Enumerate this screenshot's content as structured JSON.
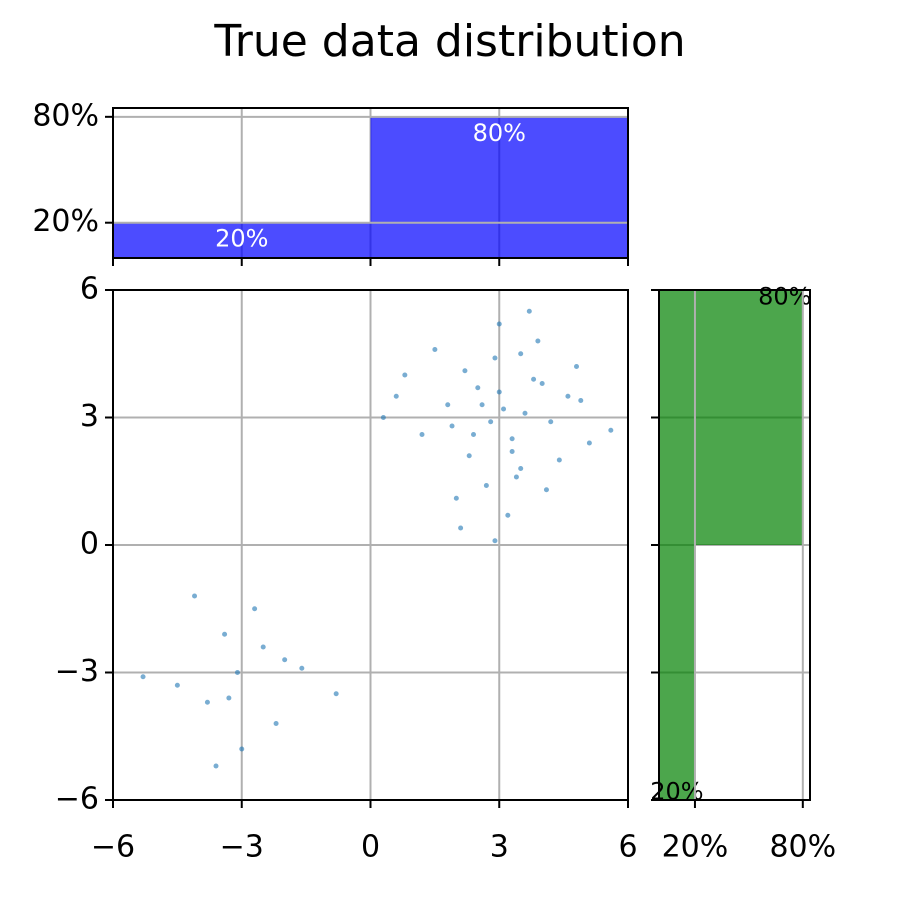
{
  "chart_data": [
    {
      "type": "scatter",
      "title": "True data distribution",
      "color": "#1f77b4",
      "grid": true,
      "xlim": [
        -6,
        6
      ],
      "ylim": [
        -6,
        6
      ],
      "xticks": [
        {
          "value": -6,
          "label": "−6"
        },
        {
          "value": -3,
          "label": "−3"
        },
        0,
        3,
        6
      ],
      "yticks": [
        {
          "value": -6,
          "label": "−6"
        },
        {
          "value": -3,
          "label": "−3"
        },
        0,
        3,
        6
      ],
      "x": [
        3.1,
        2.4,
        3.8,
        2.9,
        3.5,
        1.8,
        4.2,
        2.2,
        3.3,
        2.7,
        4.6,
        1.2,
        3.0,
        3.9,
        2.5,
        5.1,
        0.8,
        3.6,
        2.0,
        4.4,
        2.8,
        3.2,
        1.5,
        4.0,
        2.6,
        3.7,
        5.6,
        0.3,
        3.4,
        2.3,
        4.8,
        1.9,
        3.0,
        2.1,
        4.1,
        3.5,
        2.9,
        0.6,
        4.9,
        3.3,
        -3.1,
        -2.5,
        -3.8,
        -2.2,
        -3.4,
        -4.5,
        -1.6,
        -3.0,
        -2.7,
        -4.1,
        -5.3,
        -0.8,
        -3.6,
        -2.0,
        -3.3
      ],
      "y": [
        3.2,
        2.6,
        3.9,
        4.4,
        1.8,
        3.3,
        2.9,
        4.1,
        2.2,
        1.4,
        3.5,
        2.6,
        5.2,
        4.8,
        3.7,
        2.4,
        4.0,
        3.1,
        1.1,
        2.0,
        2.9,
        0.7,
        4.6,
        3.8,
        3.3,
        5.5,
        2.7,
        3.0,
        1.6,
        2.1,
        4.2,
        2.8,
        3.6,
        0.4,
        1.3,
        4.5,
        0.1,
        3.5,
        3.4,
        2.5,
        -3.0,
        -2.4,
        -3.7,
        -4.2,
        -2.1,
        -3.3,
        -2.9,
        -4.8,
        -1.5,
        -1.2,
        -3.1,
        -3.5,
        -5.2,
        -2.7,
        -3.6
      ]
    },
    {
      "type": "histogram",
      "orientation": "vertical",
      "color": "#0000ff",
      "grid": true,
      "bins": [
        -6,
        0,
        6
      ],
      "values": [
        20,
        80
      ],
      "value_labels": [
        "20%",
        "80%"
      ],
      "ylim": [
        0,
        85
      ],
      "yticks": [
        {
          "value": 20,
          "label": "20%"
        },
        {
          "value": 80,
          "label": "80%"
        }
      ]
    },
    {
      "type": "histogram",
      "orientation": "horizontal",
      "color": "#008000",
      "grid": true,
      "bins": [
        -6,
        0,
        6
      ],
      "values": [
        20,
        80
      ],
      "value_labels": [
        "20%",
        "80%"
      ],
      "xlim": [
        0,
        84
      ],
      "xticks": [
        {
          "value": 20,
          "label": "20%"
        },
        {
          "value": 80,
          "label": "80%"
        }
      ]
    }
  ]
}
